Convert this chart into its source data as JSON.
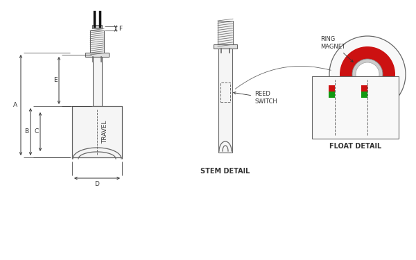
{
  "bg_color": "#ffffff",
  "line_color": "#666666",
  "line_color_dark": "#333333",
  "red_color": "#cc1111",
  "green_color": "#119911",
  "stem_detail_label": "STEM DETAIL",
  "float_detail_label": "FLOAT DETAIL",
  "ring_magnet_label": "RING\nMAGNET",
  "reed_switch_label": "REED\nSWITCH",
  "travel_label": "TRAVEL",
  "dim_labels": [
    "A",
    "B",
    "C",
    "D",
    "E",
    "F"
  ]
}
